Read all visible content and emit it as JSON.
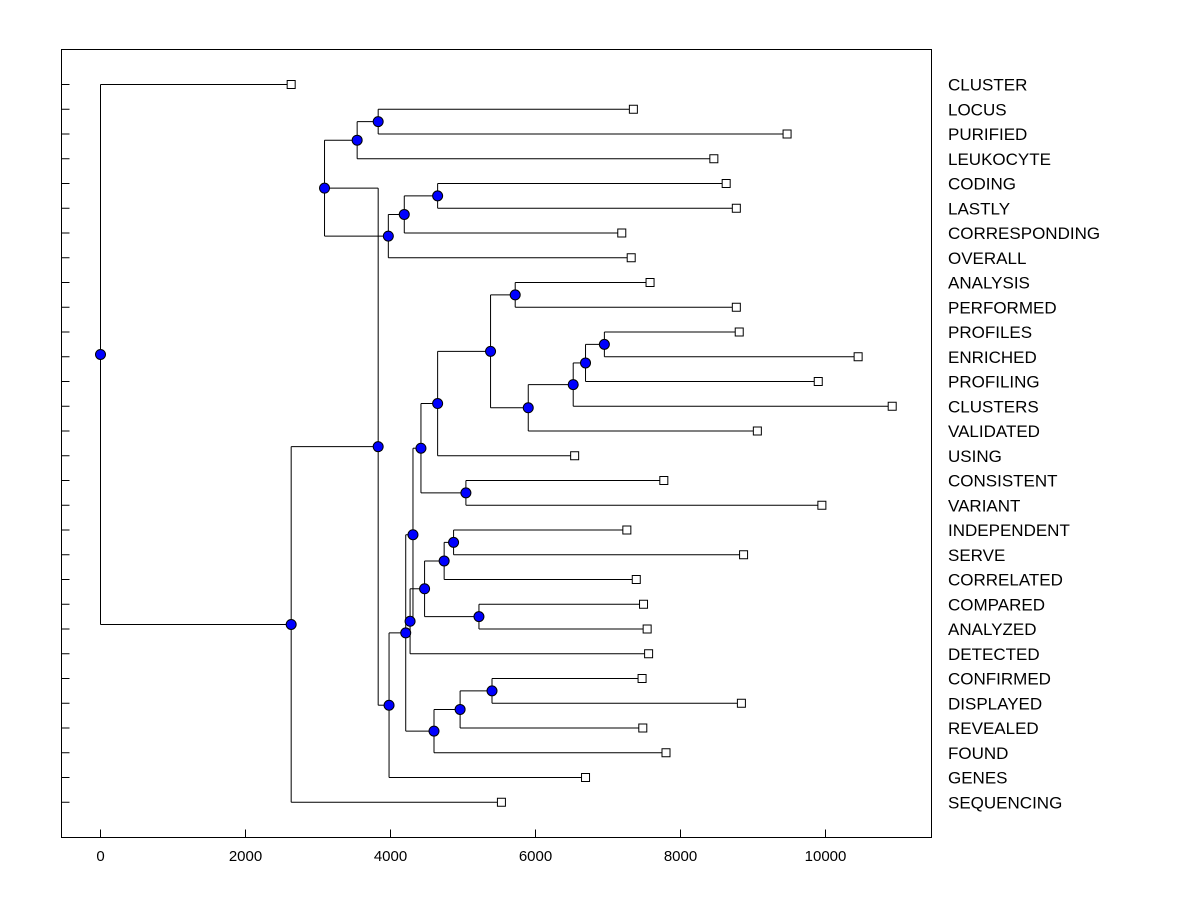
{
  "chart_data": {
    "type": "dendrogram",
    "title": "",
    "xlabel": "",
    "ylabel": "",
    "xlim": [
      -550,
      11500
    ],
    "xticks": [
      0,
      2000,
      4000,
      6000,
      8000,
      10000
    ],
    "xtick_labels": [
      "0",
      "2000",
      "4000",
      "6000",
      "8000",
      "10000"
    ],
    "grid": false,
    "colors": {
      "node": "#0000ff",
      "leaf": "#ffffff",
      "line": "#000000"
    },
    "leaves": [
      {
        "label": "CLUSTER",
        "x": 2630
      },
      {
        "label": "LOCUS",
        "x": 7350
      },
      {
        "label": "PURIFIED",
        "x": 9470
      },
      {
        "label": "LEUKOCYTE",
        "x": 8460
      },
      {
        "label": "CODING",
        "x": 8630
      },
      {
        "label": "LASTLY",
        "x": 8770
      },
      {
        "label": "CORRESPONDING",
        "x": 7190
      },
      {
        "label": "OVERALL",
        "x": 7320
      },
      {
        "label": "ANALYSIS",
        "x": 7580
      },
      {
        "label": "PERFORMED",
        "x": 8770
      },
      {
        "label": "PROFILES",
        "x": 8810
      },
      {
        "label": "ENRICHED",
        "x": 10450
      },
      {
        "label": "PROFILING",
        "x": 9900
      },
      {
        "label": "CLUSTERS",
        "x": 10920
      },
      {
        "label": "VALIDATED",
        "x": 9060
      },
      {
        "label": "USING",
        "x": 6540
      },
      {
        "label": "CONSISTENT",
        "x": 7770
      },
      {
        "label": "VARIANT",
        "x": 9950
      },
      {
        "label": "INDEPENDENT",
        "x": 7260
      },
      {
        "label": "SERVE",
        "x": 8870
      },
      {
        "label": "CORRELATED",
        "x": 7390
      },
      {
        "label": "COMPARED",
        "x": 7490
      },
      {
        "label": "ANALYZED",
        "x": 7540
      },
      {
        "label": "DETECTED",
        "x": 7560
      },
      {
        "label": "CONFIRMED",
        "x": 7470
      },
      {
        "label": "DISPLAYED",
        "x": 8840
      },
      {
        "label": "REVEALED",
        "x": 7480
      },
      {
        "label": "FOUND",
        "x": 7800
      },
      {
        "label": "GENES",
        "x": 6690
      },
      {
        "label": "SEQUENCING",
        "x": 5530
      }
    ],
    "merges": [
      {
        "id": "N1",
        "x": 3830,
        "children": [
          "L1",
          "L2"
        ]
      },
      {
        "id": "N2",
        "x": 3540,
        "children": [
          "N1",
          "L3"
        ]
      },
      {
        "id": "N3",
        "x": 4650,
        "children": [
          "L4",
          "L5"
        ]
      },
      {
        "id": "N4",
        "x": 4190,
        "children": [
          "N3",
          "L6"
        ]
      },
      {
        "id": "N5",
        "x": 3970,
        "children": [
          "N4",
          "L7"
        ]
      },
      {
        "id": "N6",
        "x": 3090,
        "children": [
          "N2",
          "N5"
        ]
      },
      {
        "id": "N7",
        "x": 5720,
        "children": [
          "L8",
          "L9"
        ]
      },
      {
        "id": "N8",
        "x": 6950,
        "children": [
          "L10",
          "L11"
        ]
      },
      {
        "id": "N9",
        "x": 6690,
        "children": [
          "N8",
          "L12"
        ]
      },
      {
        "id": "N10",
        "x": 6520,
        "children": [
          "N9",
          "L13"
        ]
      },
      {
        "id": "N11",
        "x": 5900,
        "children": [
          "N10",
          "L14"
        ]
      },
      {
        "id": "N12",
        "x": 5380,
        "children": [
          "N7",
          "N11"
        ]
      },
      {
        "id": "N13",
        "x": 4650,
        "children": [
          "N12",
          "L15"
        ]
      },
      {
        "id": "N14",
        "x": 5040,
        "children": [
          "L16",
          "L17"
        ]
      },
      {
        "id": "N15",
        "x": 4420,
        "children": [
          "N13",
          "N14"
        ]
      },
      {
        "id": "N16",
        "x": 4870,
        "children": [
          "L18",
          "L19"
        ]
      },
      {
        "id": "N17",
        "x": 4740,
        "children": [
          "N16",
          "L20"
        ]
      },
      {
        "id": "N18",
        "x": 5220,
        "children": [
          "L21",
          "L22"
        ]
      },
      {
        "id": "N19",
        "x": 4470,
        "children": [
          "N17",
          "N18"
        ]
      },
      {
        "id": "N20",
        "x": 4270,
        "children": [
          "N19",
          "L23"
        ]
      },
      {
        "id": "N21",
        "x": 4310,
        "children": [
          "N15",
          "N20"
        ]
      },
      {
        "id": "N22",
        "x": 5400,
        "children": [
          "L24",
          "L25"
        ]
      },
      {
        "id": "N23",
        "x": 4960,
        "children": [
          "N22",
          "L26"
        ]
      },
      {
        "id": "N24",
        "x": 4600,
        "children": [
          "N23",
          "L27"
        ]
      },
      {
        "id": "N25",
        "x": 4210,
        "children": [
          "N21",
          "N24"
        ]
      },
      {
        "id": "N26",
        "x": 3980,
        "children": [
          "N25",
          "L28"
        ]
      },
      {
        "id": "N27",
        "x": 3830,
        "children": [
          "N6",
          "N26"
        ]
      },
      {
        "id": "N28",
        "x": 2630,
        "children": [
          "N27",
          "L29"
        ]
      },
      {
        "id": "N29",
        "x": 0,
        "children": [
          "L0",
          "N28"
        ]
      }
    ]
  }
}
